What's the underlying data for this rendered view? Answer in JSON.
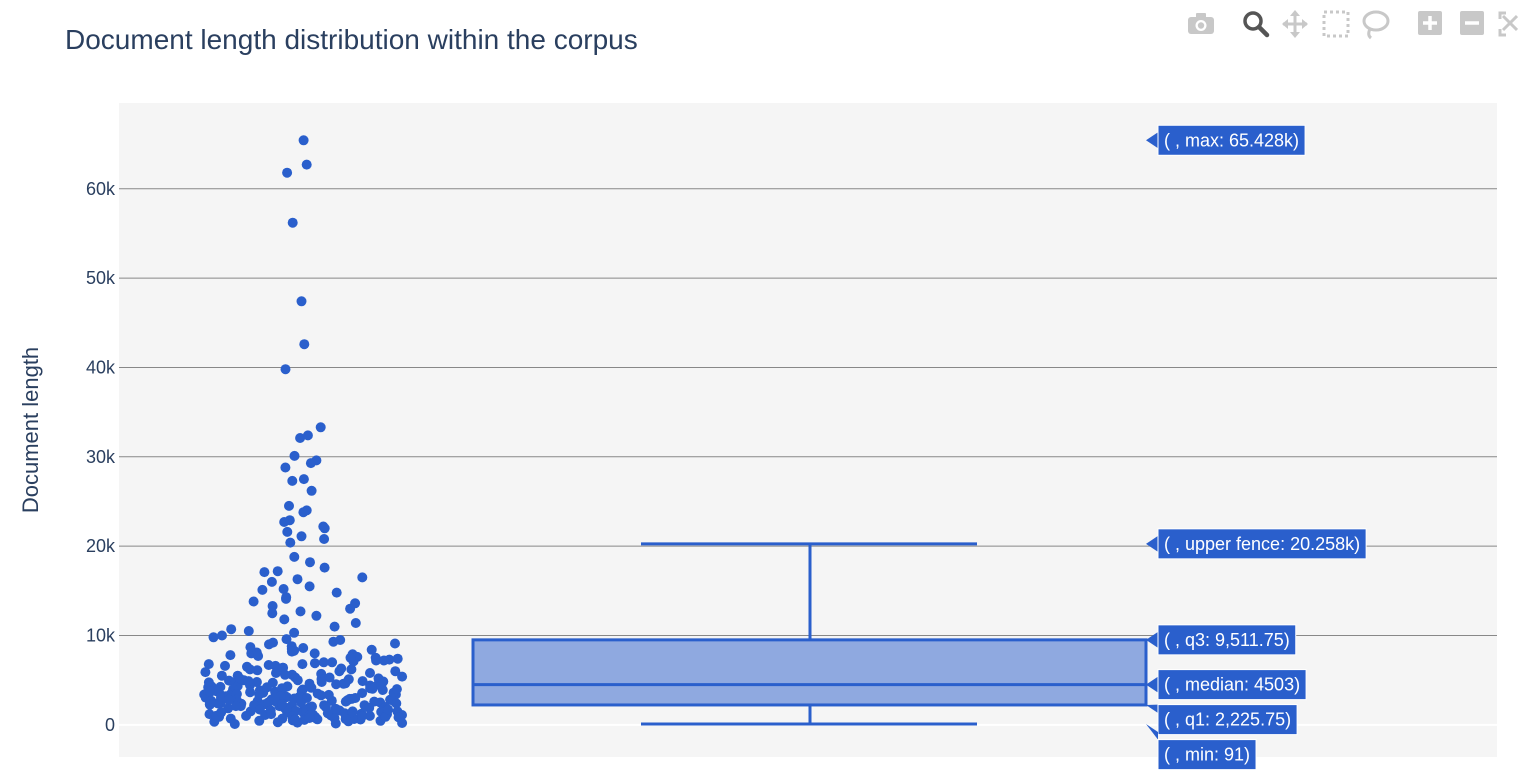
{
  "title": "Document length distribution within the corpus",
  "toolbar": {
    "icons": [
      "camera-icon",
      "zoom-icon",
      "pan-icon",
      "box-select-icon",
      "lasso-icon",
      "zoom-in-icon",
      "zoom-out-icon",
      "autoscale-icon"
    ]
  },
  "colors": {
    "accent": "#2a5fcc",
    "box_fill": "#8fa9e0",
    "plot_bg": "#f5f5f5",
    "grid": "#888888",
    "text": "#2a3f5f"
  },
  "chart_data": {
    "type": "box",
    "ylabel": "Document length",
    "ylim": [
      -3600,
      69600
    ],
    "yticks": [
      {
        "value": 0,
        "label": "0"
      },
      {
        "value": 10000,
        "label": "10k"
      },
      {
        "value": 20000,
        "label": "20k"
      },
      {
        "value": 30000,
        "label": "30k"
      },
      {
        "value": 40000,
        "label": "40k"
      },
      {
        "value": 50000,
        "label": "50k"
      },
      {
        "value": 60000,
        "label": "60k"
      }
    ],
    "grid": true,
    "boxpoints": "all",
    "stats": {
      "min": 91,
      "q1": 2225.75,
      "median": 4503,
      "q3": 9511.75,
      "upper_fence": 20258,
      "max": 65428
    },
    "hover_labels": [
      {
        "stat": "max",
        "text": "( , max: 65.428k)"
      },
      {
        "stat": "upper_fence",
        "text": "( , upper fence: 20.258k)"
      },
      {
        "stat": "q3",
        "text": "( , q3: 9,511.75)"
      },
      {
        "stat": "median",
        "text": "( , median: 4503)"
      },
      {
        "stat": "q1",
        "text": "( , q1: 2,225.75)"
      },
      {
        "stat": "min",
        "text": "( , min: 91)"
      }
    ],
    "points": [
      65428,
      62700,
      61800,
      56200,
      47400,
      42600,
      39800,
      33300,
      32400,
      32100,
      30100,
      29600,
      29300,
      28800,
      27500,
      27300,
      26200,
      24500,
      24000,
      23800,
      22900,
      22700,
      22200,
      22000,
      21600,
      21100,
      20800,
      20400,
      18800,
      18200,
      17600,
      17200,
      17100,
      16500,
      16300,
      16000,
      15500,
      15200,
      15100,
      14800,
      14300,
      14100,
      13800,
      13600,
      13300,
      13000,
      12700,
      12500,
      12200,
      11800,
      11400,
      11000,
      10700,
      10500,
      10300,
      10000,
      9800,
      9600,
      9500,
      9300,
      9100,
      9000,
      8800,
      8600,
      8500,
      8400,
      8300,
      8200,
      8100,
      8000,
      7900,
      7800,
      7700,
      7600,
      7500,
      7400,
      7300,
      7200,
      7100,
      7000,
      6900,
      6800,
      6700,
      6600,
      6500,
      6400,
      6300,
      6200,
      6100,
      6000,
      5900,
      5800,
      5700,
      5600,
      5500,
      5400,
      5300,
      5200,
      5100,
      5000,
      4950,
      4900,
      4850,
      4800,
      4750,
      4700,
      4650,
      4600,
      4550,
      4500,
      4450,
      4400,
      4350,
      4300,
      4250,
      4200,
      4150,
      4100,
      4050,
      4000,
      3950,
      3900,
      3850,
      3800,
      3750,
      3700,
      3650,
      3600,
      3550,
      3500,
      3450,
      3400,
      3350,
      3300,
      3250,
      3200,
      3150,
      3100,
      3050,
      3000,
      2950,
      2900,
      2850,
      2800,
      2750,
      2700,
      2650,
      2600,
      2550,
      2500,
      2450,
      2400,
      2350,
      2300,
      2250,
      2200,
      2150,
      2100,
      2050,
      2000,
      1950,
      1900,
      1850,
      1800,
      1750,
      1700,
      1650,
      1600,
      1550,
      1500,
      1450,
      1400,
      1350,
      1300,
      1250,
      1200,
      1150,
      1100,
      1050,
      1000,
      950,
      900,
      850,
      800,
      750,
      700,
      650,
      600,
      550,
      500,
      450,
      400,
      350,
      300,
      250,
      200,
      150,
      91,
      6000,
      5500,
      5000,
      4600,
      4200,
      3800,
      3400,
      3000,
      2700,
      2400,
      2100,
      1800,
      1500,
      1300,
      1100,
      900,
      7000,
      6400,
      5800,
      5200,
      4700,
      4300,
      3900,
      3500,
      3100,
      2800,
      2500,
      2200,
      1900,
      1600,
      1400,
      1200,
      1000,
      800,
      600,
      8000,
      7200,
      6600,
      5600,
      4900,
      4100,
      3700,
      3300,
      2900,
      2600,
      2300,
      2000,
      1700,
      9200,
      8700,
      7500,
      6800,
      6200,
      5300,
      4400,
      3600,
      3200,
      2700,
      2200,
      1800,
      1400,
      1000,
      700,
      5100,
      4800,
      4000,
      3400,
      2900,
      2500,
      2100,
      1700,
      1300,
      950,
      650,
      450,
      3300,
      3000,
      2600,
      2400,
      2000,
      1600,
      1200,
      880,
      620,
      2800,
      2300,
      1900,
      1500,
      1100,
      760
    ]
  }
}
